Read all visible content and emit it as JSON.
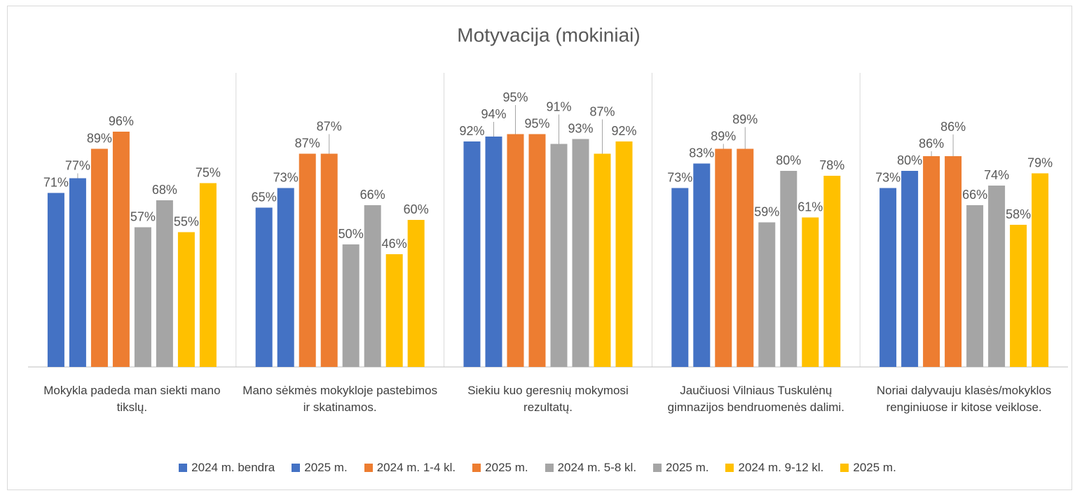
{
  "chart_data": {
    "type": "bar",
    "title": "Motyvacija (mokiniai)",
    "categories": [
      "Mokykla padeda man siekti mano tikslų.",
      "Mano sėkmės mokykloje pastebimos ir skatinamos.",
      "Siekiu kuo geresnių mokymosi rezultatų.",
      "Jaučiuosi Vilniaus Tuskulėnų gimnazijos bendruomenės dalimi.",
      "Noriai dalyvauju klasės/mokyklos renginiuose ir kitose veiklose."
    ],
    "series": [
      {
        "name": "2024 m. bendra",
        "color": "#4472c4",
        "values": [
          71,
          65,
          92,
          73,
          73
        ],
        "value_labels": [
          "71%",
          "65%",
          "92%",
          "73%",
          "73%"
        ]
      },
      {
        "name": "2025 m.",
        "color": "#4472c4",
        "values": [
          77,
          73,
          94,
          83,
          80
        ],
        "value_labels": [
          "77%",
          "73%",
          "94%",
          "83%",
          "80%"
        ]
      },
      {
        "name": "2024 m. 1-4 kl.",
        "color": "#ed7d31",
        "values": [
          89,
          87,
          95,
          89,
          86
        ],
        "value_labels": [
          "89%",
          "87%",
          "95%",
          "89%",
          "86%"
        ]
      },
      {
        "name": "2025 m.",
        "color": "#ed7d31",
        "values": [
          96,
          87,
          95,
          89,
          86
        ],
        "value_labels": [
          "96%",
          "87%",
          "95%",
          "89%",
          "86%"
        ]
      },
      {
        "name": "2024 m. 5-8 kl.",
        "color": "#a5a5a5",
        "values": [
          57,
          50,
          91,
          59,
          66
        ],
        "value_labels": [
          "57%",
          "50%",
          "91%",
          "59%",
          "66%"
        ]
      },
      {
        "name": "2025 m.",
        "color": "#a5a5a5",
        "values": [
          68,
          66,
          93,
          80,
          74
        ],
        "value_labels": [
          "68%",
          "66%",
          "93%",
          "80%",
          "74%"
        ]
      },
      {
        "name": "2024 m. 9-12 kl.",
        "color": "#ffc000",
        "values": [
          55,
          46,
          87,
          61,
          58
        ],
        "value_labels": [
          "55%",
          "46%",
          "87%",
          "61%",
          "58%"
        ]
      },
      {
        "name": "2025 m.",
        "color": "#ffc000",
        "values": [
          75,
          60,
          92,
          78,
          79
        ],
        "value_labels": [
          "75%",
          "60%",
          "92%",
          "78%",
          "79%"
        ]
      }
    ],
    "ylim": [
      0,
      120
    ]
  }
}
